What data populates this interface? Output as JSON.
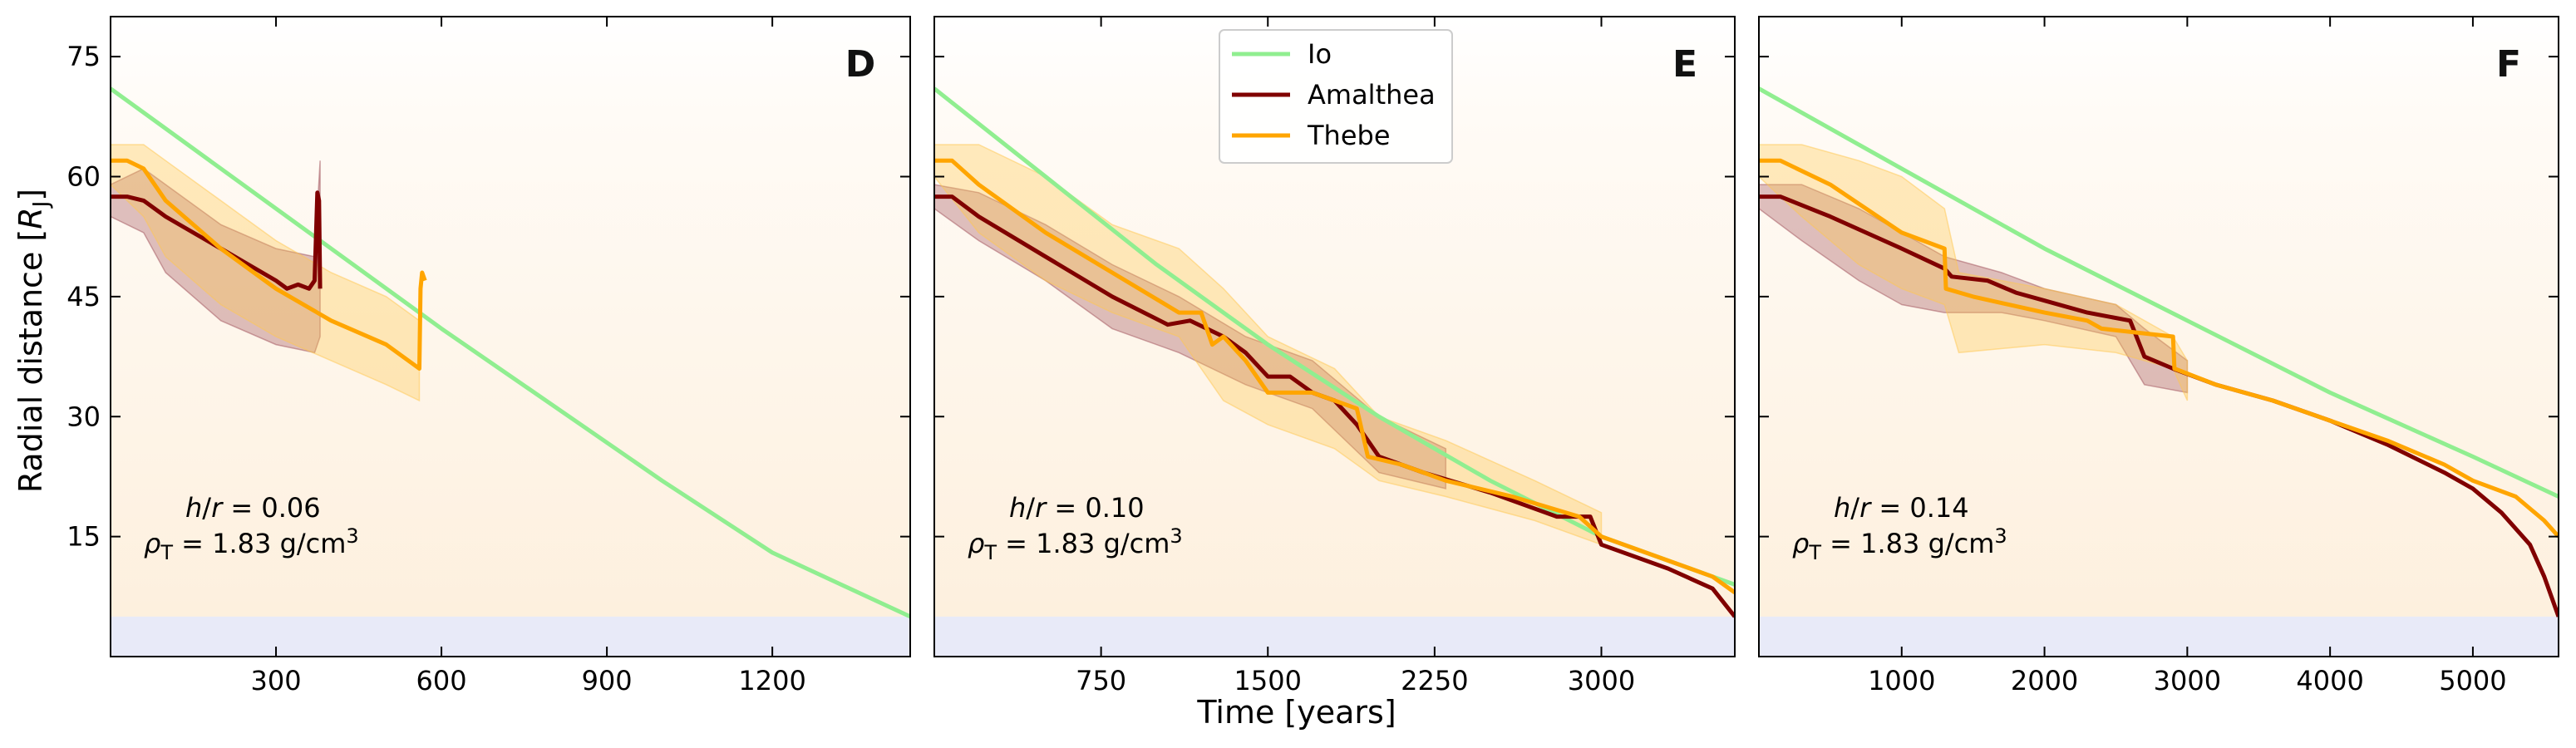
{
  "figure": {
    "ylabel": "Radial distance [",
    "ylabel_symbol": "R",
    "ylabel_sub": "J",
    "ylabel_end": "]",
    "xlabel": "Time [years]",
    "colors": {
      "Io": "#90ee90",
      "Amalthea": "#800000",
      "Thebe": "#ffa500",
      "band_amalthea": "#a0505a",
      "band_thebe": "#ffc850",
      "bottom_band": "#e8eaf8",
      "bg_warm": "#fdf0dc"
    }
  },
  "legend": {
    "entries": [
      {
        "name": "Io",
        "color": "#90ee90"
      },
      {
        "name": "Amalthea",
        "color": "#800000"
      },
      {
        "name": "Thebe",
        "color": "#ffa500"
      }
    ]
  },
  "chart_data": [
    {
      "type": "line",
      "panel": "D",
      "h_r_label": "h/r = 0.06",
      "rho_label": "ρT = 1.83 g/cm3",
      "rho_value": "1.83 g/cm",
      "h_r_value": "= 0.06",
      "xlim": [
        0,
        1450
      ],
      "ylim": [
        0,
        80
      ],
      "xticks": [
        300,
        600,
        900,
        1200
      ],
      "yticks": [
        15,
        30,
        45,
        60,
        75
      ],
      "bottom_band": [
        0,
        5
      ],
      "series": [
        {
          "name": "Io",
          "x": [
            0,
            200,
            400,
            600,
            800,
            1000,
            1200,
            1450
          ],
          "y": [
            71,
            61,
            51,
            41,
            31.5,
            22,
            13,
            5
          ]
        },
        {
          "name": "Amalthea",
          "x": [
            0,
            30,
            60,
            100,
            150,
            200,
            250,
            300,
            320,
            340,
            360,
            370,
            375,
            378,
            380
          ],
          "y": [
            57.5,
            57.5,
            57,
            55,
            53,
            51,
            49,
            47,
            46,
            46.5,
            46,
            47,
            58,
            57,
            46
          ]
        },
        {
          "name": "Thebe",
          "x": [
            0,
            30,
            60,
            100,
            200,
            300,
            400,
            500,
            560,
            562,
            565,
            570
          ],
          "y": [
            62,
            62,
            61,
            57,
            51,
            46,
            42,
            39,
            36,
            46,
            48,
            47
          ]
        }
      ],
      "bands": [
        {
          "name": "Amalthea",
          "x": [
            0,
            60,
            100,
            200,
            300,
            370,
            380
          ],
          "upper": [
            59,
            61,
            59,
            54,
            51,
            50,
            62
          ],
          "lower": [
            55,
            53,
            48,
            42,
            39,
            38,
            40
          ]
        },
        {
          "name": "Thebe",
          "x": [
            0,
            60,
            100,
            200,
            300,
            400,
            500,
            560
          ],
          "upper": [
            64,
            64,
            62,
            57,
            52,
            48,
            45,
            42
          ],
          "lower": [
            59,
            55,
            50,
            44,
            40,
            37,
            34,
            32
          ]
        }
      ]
    },
    {
      "type": "line",
      "panel": "E",
      "h_r_label": "h/r = 0.10",
      "h_r_value": "= 0.10",
      "rho_value": "1.83 g/cm",
      "xlim": [
        0,
        3600
      ],
      "ylim": [
        0,
        80
      ],
      "xticks": [
        750,
        1500,
        2250,
        3000
      ],
      "yticks": [
        15,
        30,
        45,
        60,
        75
      ],
      "bottom_band": [
        0,
        5
      ],
      "series": [
        {
          "name": "Io",
          "x": [
            0,
            500,
            1000,
            1500,
            2000,
            2500,
            3000,
            3600
          ],
          "y": [
            71,
            60,
            49,
            39,
            30,
            22,
            15,
            9
          ]
        },
        {
          "name": "Amalthea",
          "x": [
            0,
            80,
            200,
            500,
            800,
            1050,
            1150,
            1300,
            1400,
            1500,
            1600,
            1700,
            1800,
            1900,
            2000,
            2200,
            2500,
            2800,
            2950,
            3000,
            3300,
            3500,
            3600
          ],
          "y": [
            57.5,
            57.5,
            55,
            50,
            45,
            41.5,
            42,
            40,
            38,
            35,
            35,
            33,
            32,
            29,
            25,
            23,
            20.5,
            17.5,
            17.5,
            14,
            11,
            8.5,
            5
          ]
        },
        {
          "name": "Thebe",
          "x": [
            0,
            80,
            200,
            500,
            800,
            1100,
            1200,
            1250,
            1300,
            1400,
            1500,
            1700,
            1900,
            1950,
            2100,
            2300,
            2600,
            2900,
            3000,
            3300,
            3500,
            3600
          ],
          "y": [
            62,
            62,
            59,
            53,
            48,
            43,
            43,
            39,
            40,
            37,
            33,
            33,
            31,
            25,
            24,
            22,
            20,
            17.5,
            15,
            12,
            10,
            8
          ]
        }
      ],
      "bands": [
        {
          "name": "Amalthea",
          "x": [
            0,
            200,
            500,
            800,
            1100,
            1400,
            1700,
            2000,
            2300
          ],
          "upper": [
            59,
            58,
            54,
            49,
            45,
            40,
            37,
            30,
            26
          ],
          "lower": [
            56,
            52,
            47,
            41,
            38,
            34,
            31,
            23,
            21
          ]
        },
        {
          "name": "Thebe",
          "x": [
            0,
            200,
            500,
            800,
            1100,
            1300,
            1500,
            1800,
            2000,
            2300,
            2700,
            3000
          ],
          "upper": [
            64,
            64,
            60,
            54,
            51,
            46,
            40,
            36,
            30,
            27,
            22,
            18
          ],
          "lower": [
            60,
            53,
            47,
            43,
            40,
            32,
            29,
            26,
            22,
            20,
            17,
            14
          ]
        }
      ]
    },
    {
      "type": "line",
      "panel": "F",
      "h_r_label": "h/r = 0.14",
      "h_r_value": "= 0.14",
      "rho_value": "1.83 g/cm",
      "xlim": [
        0,
        5600
      ],
      "ylim": [
        0,
        80
      ],
      "xticks": [
        1000,
        2000,
        3000,
        4000,
        5000
      ],
      "yticks": [
        15,
        30,
        45,
        60,
        75
      ],
      "bottom_band": [
        0,
        5
      ],
      "series": [
        {
          "name": "Io",
          "x": [
            0,
            1000,
            2000,
            3000,
            4000,
            5000,
            5600
          ],
          "y": [
            71,
            61,
            51,
            42,
            33,
            25,
            20
          ]
        },
        {
          "name": "Amalthea",
          "x": [
            0,
            150,
            500,
            1000,
            1300,
            1350,
            1600,
            1800,
            2000,
            2300,
            2600,
            2700,
            2900,
            3200,
            3600,
            4000,
            4400,
            4800,
            5000,
            5200,
            5400,
            5500,
            5600
          ],
          "y": [
            57.5,
            57.5,
            55,
            51,
            48.5,
            47.5,
            47,
            45.5,
            44.5,
            43,
            42,
            37.5,
            36,
            34,
            32,
            29.5,
            26.5,
            23,
            21,
            18,
            14,
            10,
            5
          ]
        },
        {
          "name": "Thebe",
          "x": [
            0,
            150,
            500,
            1000,
            1300,
            1310,
            1500,
            2000,
            2300,
            2400,
            2900,
            2910,
            3200,
            3600,
            4000,
            4400,
            4800,
            5000,
            5300,
            5500,
            5600
          ],
          "y": [
            62,
            62,
            59,
            53,
            51,
            46,
            45,
            43,
            42,
            41,
            40,
            36,
            34,
            32,
            29.5,
            27,
            24,
            22,
            20,
            17,
            15
          ]
        }
      ],
      "bands": [
        {
          "name": "Amalthea",
          "x": [
            0,
            300,
            700,
            1000,
            1300,
            1700,
            2000,
            2500,
            2700,
            3000
          ],
          "upper": [
            59,
            59,
            56,
            53,
            50,
            48,
            46,
            44,
            41,
            37
          ],
          "lower": [
            56,
            52,
            47,
            44,
            43,
            43,
            42,
            40,
            34,
            33
          ]
        },
        {
          "name": "Thebe",
          "x": [
            0,
            300,
            700,
            1000,
            1300,
            1400,
            2000,
            2500,
            2900,
            3000
          ],
          "upper": [
            64,
            64,
            62,
            60,
            56,
            48,
            46,
            44,
            40,
            37
          ],
          "lower": [
            60,
            55,
            49,
            46,
            44,
            38,
            39,
            38,
            36,
            32
          ]
        }
      ]
    }
  ]
}
